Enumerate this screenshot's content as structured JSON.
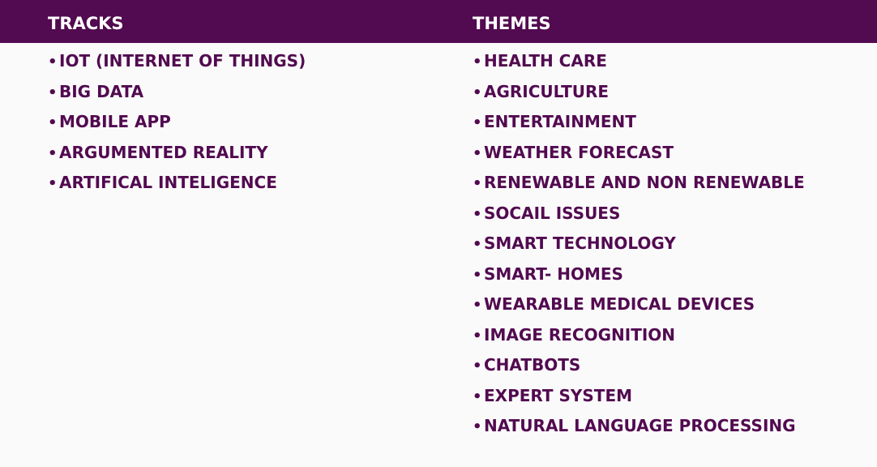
{
  "header": {
    "tracks_title": "TRACKS",
    "themes_title": "THEMES"
  },
  "bullet": "•",
  "tracks": [
    "IOT (INTERNET OF THINGS)",
    "BIG DATA",
    "MOBILE APP",
    "ARGUMENTED REALITY",
    "ARTIFICAL INTELIGENCE"
  ],
  "themes": [
    "HEALTH CARE",
    "AGRICULTURE",
    "ENTERTAINMENT",
    "WEATHER FORECAST",
    "RENEWABLE AND NON RENEWABLE",
    "SOCAIL ISSUES",
    "SMART TECHNOLOGY",
    "SMART- HOMES",
    "WEARABLE MEDICAL DEVICES",
    "IMAGE RECOGNITION",
    "CHATBOTS",
    "EXPERT SYSTEM",
    "NATURAL LANGUAGE PROCESSING"
  ],
  "colors": {
    "header_bg": "#520a50",
    "header_text": "#ffffff",
    "item_text": "#520a50",
    "page_bg": "#fafafa"
  }
}
